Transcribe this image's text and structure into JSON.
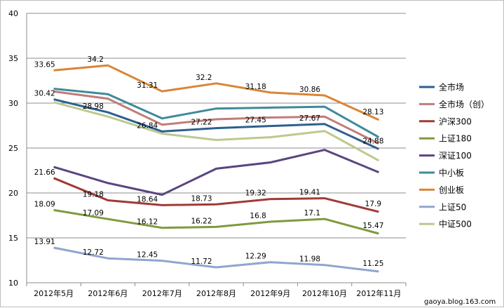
{
  "chart_data": {
    "type": "line",
    "categories": [
      "2012年5月",
      "2012年6月",
      "2012年7月",
      "2012年8月",
      "2012年9月",
      "2012年10月",
      "2012年11月"
    ],
    "ylim": [
      10,
      40
    ],
    "yticks": [
      10,
      15,
      20,
      25,
      30,
      35,
      40
    ],
    "grid": "horizontal",
    "legend_position": "right",
    "series": [
      {
        "name": "全市场",
        "color": "#2e5f8e",
        "values": [
          30.42,
          28.98,
          26.84,
          27.22,
          27.45,
          27.67,
          24.88
        ]
      },
      {
        "name": "全市场（创）",
        "color": "#c07c7a",
        "values": [
          31.3,
          30.5,
          27.6,
          28.2,
          28.4,
          28.5,
          25.5
        ]
      },
      {
        "name": "沪深300",
        "color": "#a03a36",
        "values": [
          21.66,
          19.18,
          18.64,
          18.73,
          19.32,
          19.41,
          17.9
        ]
      },
      {
        "name": "上证180",
        "color": "#7f9a3e",
        "values": [
          18.09,
          17.09,
          16.12,
          16.22,
          16.8,
          17.1,
          15.47
        ]
      },
      {
        "name": "深证100",
        "color": "#5a4580",
        "values": [
          22.9,
          21.1,
          19.8,
          22.7,
          23.4,
          24.8,
          22.3
        ]
      },
      {
        "name": "中小板",
        "color": "#3e8a9a",
        "values": [
          31.6,
          31.0,
          28.3,
          29.4,
          29.5,
          29.6,
          26.2
        ]
      },
      {
        "name": "创业板",
        "color": "#d98535",
        "values": [
          33.65,
          34.2,
          31.31,
          32.2,
          31.18,
          30.86,
          28.13
        ]
      },
      {
        "name": "上证50",
        "color": "#8fa5d0",
        "values": [
          13.91,
          12.72,
          12.45,
          11.72,
          12.29,
          11.98,
          11.25
        ]
      },
      {
        "name": "中证500",
        "color": "#bdc98e",
        "values": [
          30.1,
          28.5,
          26.6,
          25.9,
          26.2,
          26.9,
          23.6
        ]
      }
    ],
    "data_labels": [
      {
        "series": "全市场",
        "values": [
          "30.42",
          "28.98",
          "26.84",
          "27.22",
          "27.45",
          "27.67",
          "24.88"
        ]
      },
      {
        "series": "沪深300",
        "values": [
          "21.66",
          "19.18",
          "18.64",
          "18.73",
          "19.32",
          "19.41",
          "17.9"
        ]
      },
      {
        "series": "上证180",
        "values": [
          "18.09",
          "17.09",
          "16.12",
          "16.22",
          "16.8",
          "17.1",
          "15.47"
        ]
      },
      {
        "series": "创业板",
        "values": [
          "33.65",
          "34.2",
          "31.31",
          "32.2",
          "31.18",
          "30.86",
          "28.13"
        ]
      },
      {
        "series": "上证50",
        "values": [
          "13.91",
          "12.72",
          "12.45",
          "11.72",
          "12.29",
          "11.98",
          "11.25"
        ]
      }
    ]
  },
  "watermark": "gaoya.blog.163.com"
}
